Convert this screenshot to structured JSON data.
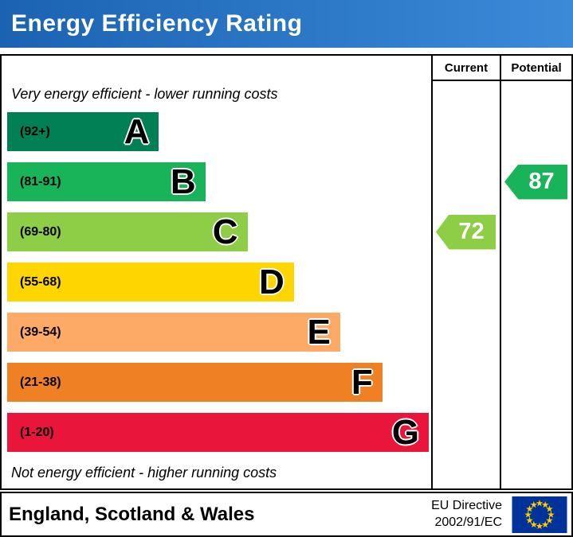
{
  "banner": {
    "title": "Energy Efficiency Rating",
    "bg_left": "#1b63b2",
    "bg_right": "#3b8ad8",
    "text_color": "#ffffff"
  },
  "columns": {
    "current": "Current",
    "potential": "Potential"
  },
  "chart_data": {
    "type": "bar",
    "title": "Energy Efficiency Rating",
    "top_label": "Very energy efficient - lower running costs",
    "bottom_label": "Not energy efficient - higher running costs",
    "bands": [
      {
        "letter": "A",
        "range": "(92+)",
        "min": 92,
        "max": 100,
        "color": "#008054",
        "width_pct": 36
      },
      {
        "letter": "B",
        "range": "(81-91)",
        "min": 81,
        "max": 91,
        "color": "#19b459",
        "width_pct": 47
      },
      {
        "letter": "C",
        "range": "(69-80)",
        "min": 69,
        "max": 80,
        "color": "#8dce46",
        "width_pct": 57
      },
      {
        "letter": "D",
        "range": "(55-68)",
        "min": 55,
        "max": 68,
        "color": "#ffd500",
        "width_pct": 68
      },
      {
        "letter": "E",
        "range": "(39-54)",
        "min": 39,
        "max": 54,
        "color": "#fcaa65",
        "width_pct": 79
      },
      {
        "letter": "F",
        "range": "(21-38)",
        "min": 21,
        "max": 38,
        "color": "#ef8023",
        "width_pct": 89
      },
      {
        "letter": "G",
        "range": "(1-20)",
        "min": 1,
        "max": 20,
        "color": "#e9153b",
        "width_pct": 100
      }
    ],
    "current": {
      "value": 72,
      "band": "C",
      "color": "#8dce46"
    },
    "potential": {
      "value": 87,
      "band": "B",
      "color": "#19b459"
    }
  },
  "footer": {
    "region": "England, Scotland & Wales",
    "directive_line1": "EU Directive",
    "directive_line2": "2002/91/EC",
    "flag": {
      "bg": "#003399",
      "star": "#ffcc00"
    }
  }
}
